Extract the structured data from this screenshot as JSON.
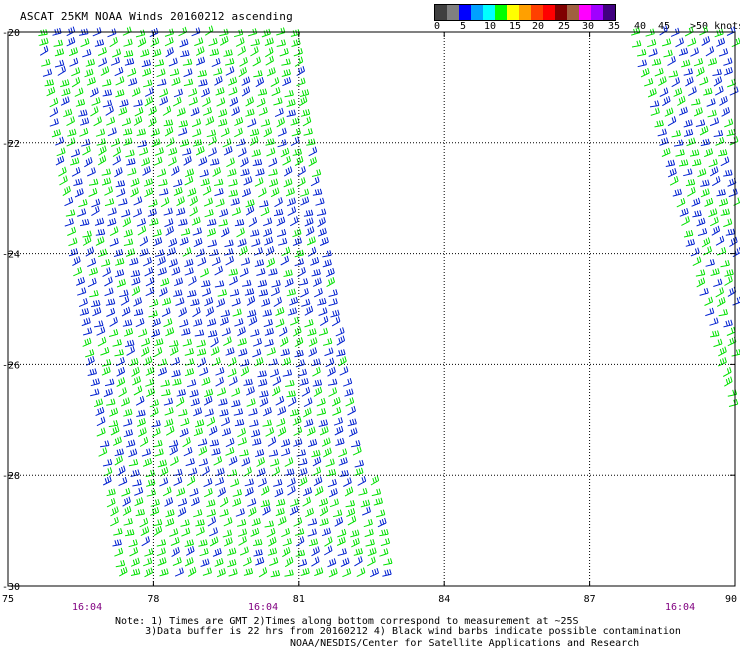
{
  "header": {
    "title": "ASCAT 25KM NOAA Winds 20160212 ascending"
  },
  "legend": {
    "labels": [
      "0",
      "5",
      "10",
      "15",
      "20",
      "25",
      "30",
      "35",
      "40",
      "45",
      ">50 knots"
    ],
    "colors": [
      "#404040",
      "#808080",
      "#0000ff",
      "#00a0ff",
      "#00ffff",
      "#00ff00",
      "#ffff00",
      "#ffa000",
      "#ff4000",
      "#ff0000",
      "#800000",
      "#a06040",
      "#ff00ff",
      "#a000ff",
      "#400080"
    ]
  },
  "map": {
    "lat_labels": [
      "-20",
      "-22",
      "-24",
      "-26",
      "-28",
      "-30"
    ],
    "lon_labels": [
      "75",
      "78",
      "81",
      "84",
      "87",
      "90"
    ],
    "time_labels": [
      "16:04",
      "16:04",
      "16:04"
    ],
    "lat_range": [
      -30,
      -20
    ],
    "lon_range": [
      75,
      90
    ],
    "grid": true,
    "barb_colors": {
      "green": "#00e000",
      "blue": "#0020d0"
    }
  },
  "footer": {
    "note_line1": "Note: 1) Times are GMT 2)Times along bottom correspond to measurement at ~25S",
    "note_line2": "     3)Data buffer is 22 hrs from 20160212 4) Black wind barbs indicate possible contamination",
    "credit": "NOAA/NESDIS/Center for Satellite Applications and Research"
  }
}
